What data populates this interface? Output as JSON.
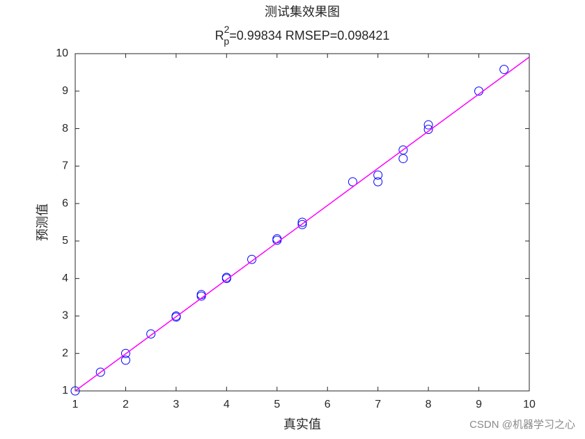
{
  "chart_data": {
    "type": "scatter",
    "title": "测试集效果图",
    "subtitle": {
      "base": "R",
      "sup": "2",
      "sub": "p",
      "rest": "=0.99834  RMSEP=0.098421"
    },
    "x_label": "真实值",
    "y_label": "预测值",
    "watermark": "CSDN @机器学习之心",
    "xlim": [
      1,
      10
    ],
    "ylim": [
      1,
      10
    ],
    "xticks": [
      1,
      2,
      3,
      4,
      5,
      6,
      7,
      8,
      9,
      10
    ],
    "yticks": [
      1,
      2,
      3,
      4,
      5,
      6,
      7,
      8,
      9,
      10
    ],
    "grid": false,
    "series": [
      {
        "type": "scatter",
        "color": "#0000ff",
        "x": [
          1,
          1.5,
          2,
          2,
          2.5,
          3,
          3,
          3.5,
          3.5,
          4,
          4,
          4.5,
          5,
          5,
          5.5,
          5.5,
          6.5,
          7,
          7,
          7.5,
          7.5,
          8,
          8,
          9,
          9.5
        ],
        "values": [
          1.0,
          1.5,
          2.0,
          1.82,
          2.52,
          3.0,
          2.97,
          3.57,
          3.53,
          4.03,
          4.0,
          4.51,
          5.06,
          5.02,
          5.5,
          5.44,
          6.58,
          6.76,
          6.58,
          7.43,
          7.2,
          8.1,
          7.98,
          9.0,
          9.58
        ]
      },
      {
        "type": "line",
        "color": "#ff00ff",
        "x": [
          1,
          10
        ],
        "values": [
          1.0,
          9.91
        ]
      }
    ]
  }
}
